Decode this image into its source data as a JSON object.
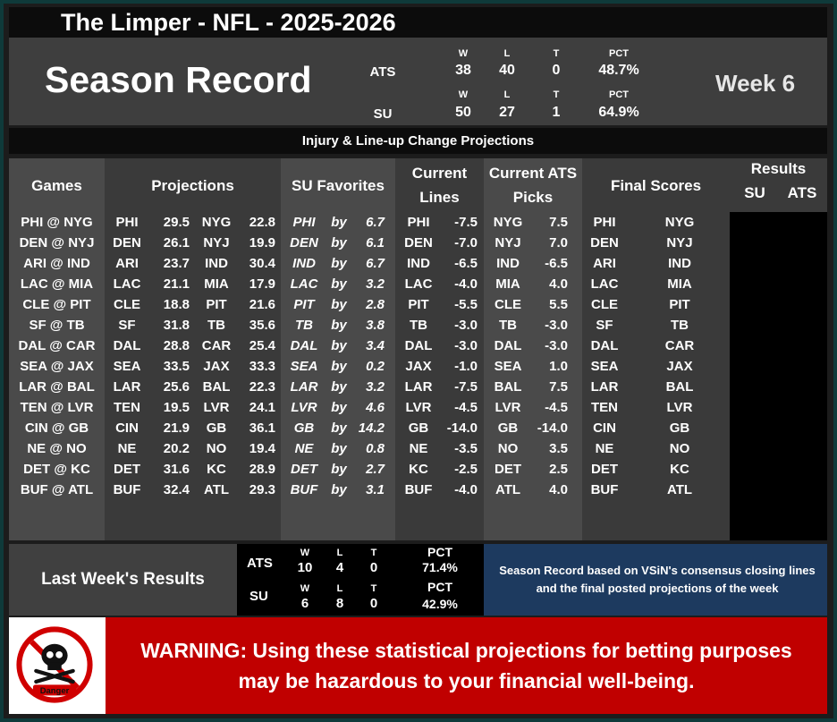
{
  "title": "The Limper - NFL - 2025-2026",
  "season": {
    "heading": "Season Record",
    "week": "Week 6",
    "ats": {
      "label": "ATS",
      "w_hdr": "W",
      "l_hdr": "L",
      "t_hdr": "T",
      "pct_hdr": "PCT",
      "w": "38",
      "l": "40",
      "t": "0",
      "pct": "48.7%"
    },
    "su": {
      "label": "SU",
      "w_hdr": "W",
      "l_hdr": "L",
      "t_hdr": "T",
      "pct_hdr": "PCT",
      "w": "50",
      "l": "27",
      "t": "1",
      "pct": "64.9%"
    }
  },
  "subtitle": "Injury & Line-up Change Projections",
  "headers": {
    "games": "Games",
    "projections": "Projections",
    "su_favorites": "SU Favorites",
    "current_lines_1": "Current",
    "current_lines_2": "Lines",
    "current_ats_1": "Current ATS",
    "current_ats_2": "Picks",
    "final_scores": "Final Scores",
    "results": "Results",
    "results_su": "SU",
    "results_ats": "ATS"
  },
  "rows": [
    {
      "game": "PHI @ NYG",
      "p_away": "PHI",
      "p_away_score": "29.5",
      "p_home": "NYG",
      "p_home_score": "22.8",
      "fav": "PHI",
      "by": "by",
      "margin": "6.7",
      "line_team": "PHI",
      "line": "-7.5",
      "ats_team": "NYG",
      "ats_line": "7.5",
      "f_away": "PHI",
      "f_home": "NYG"
    },
    {
      "game": "DEN @ NYJ",
      "p_away": "DEN",
      "p_away_score": "26.1",
      "p_home": "NYJ",
      "p_home_score": "19.9",
      "fav": "DEN",
      "by": "by",
      "margin": "6.1",
      "line_team": "DEN",
      "line": "-7.0",
      "ats_team": "NYJ",
      "ats_line": "7.0",
      "f_away": "DEN",
      "f_home": "NYJ"
    },
    {
      "game": "ARI @ IND",
      "p_away": "ARI",
      "p_away_score": "23.7",
      "p_home": "IND",
      "p_home_score": "30.4",
      "fav": "IND",
      "by": "by",
      "margin": "6.7",
      "line_team": "IND",
      "line": "-6.5",
      "ats_team": "IND",
      "ats_line": "-6.5",
      "f_away": "ARI",
      "f_home": "IND"
    },
    {
      "game": "LAC @ MIA",
      "p_away": "LAC",
      "p_away_score": "21.1",
      "p_home": "MIA",
      "p_home_score": "17.9",
      "fav": "LAC",
      "by": "by",
      "margin": "3.2",
      "line_team": "LAC",
      "line": "-4.0",
      "ats_team": "MIA",
      "ats_line": "4.0",
      "f_away": "LAC",
      "f_home": "MIA"
    },
    {
      "game": "CLE @ PIT",
      "p_away": "CLE",
      "p_away_score": "18.8",
      "p_home": "PIT",
      "p_home_score": "21.6",
      "fav": "PIT",
      "by": "by",
      "margin": "2.8",
      "line_team": "PIT",
      "line": "-5.5",
      "ats_team": "CLE",
      "ats_line": "5.5",
      "f_away": "CLE",
      "f_home": "PIT"
    },
    {
      "game": "SF @ TB",
      "p_away": "SF",
      "p_away_score": "31.8",
      "p_home": "TB",
      "p_home_score": "35.6",
      "fav": "TB",
      "by": "by",
      "margin": "3.8",
      "line_team": "TB",
      "line": "-3.0",
      "ats_team": "TB",
      "ats_line": "-3.0",
      "f_away": "SF",
      "f_home": "TB"
    },
    {
      "game": "DAL @ CAR",
      "p_away": "DAL",
      "p_away_score": "28.8",
      "p_home": "CAR",
      "p_home_score": "25.4",
      "fav": "DAL",
      "by": "by",
      "margin": "3.4",
      "line_team": "DAL",
      "line": "-3.0",
      "ats_team": "DAL",
      "ats_line": "-3.0",
      "f_away": "DAL",
      "f_home": "CAR"
    },
    {
      "game": "SEA @ JAX",
      "p_away": "SEA",
      "p_away_score": "33.5",
      "p_home": "JAX",
      "p_home_score": "33.3",
      "fav": "SEA",
      "by": "by",
      "margin": "0.2",
      "line_team": "JAX",
      "line": "-1.0",
      "ats_team": "SEA",
      "ats_line": "1.0",
      "f_away": "SEA",
      "f_home": "JAX"
    },
    {
      "game": "LAR @ BAL",
      "p_away": "LAR",
      "p_away_score": "25.6",
      "p_home": "BAL",
      "p_home_score": "22.3",
      "fav": "LAR",
      "by": "by",
      "margin": "3.2",
      "line_team": "LAR",
      "line": "-7.5",
      "ats_team": "BAL",
      "ats_line": "7.5",
      "f_away": "LAR",
      "f_home": "BAL"
    },
    {
      "game": "TEN @ LVR",
      "p_away": "TEN",
      "p_away_score": "19.5",
      "p_home": "LVR",
      "p_home_score": "24.1",
      "fav": "LVR",
      "by": "by",
      "margin": "4.6",
      "line_team": "LVR",
      "line": "-4.5",
      "ats_team": "LVR",
      "ats_line": "-4.5",
      "f_away": "TEN",
      "f_home": "LVR"
    },
    {
      "game": "CIN @ GB",
      "p_away": "CIN",
      "p_away_score": "21.9",
      "p_home": "GB",
      "p_home_score": "36.1",
      "fav": "GB",
      "by": "by",
      "margin": "14.2",
      "line_team": "GB",
      "line": "-14.0",
      "ats_team": "GB",
      "ats_line": "-14.0",
      "f_away": "CIN",
      "f_home": "GB"
    },
    {
      "game": "NE @ NO",
      "p_away": "NE",
      "p_away_score": "20.2",
      "p_home": "NO",
      "p_home_score": "19.4",
      "fav": "NE",
      "by": "by",
      "margin": "0.8",
      "line_team": "NE",
      "line": "-3.5",
      "ats_team": "NO",
      "ats_line": "3.5",
      "f_away": "NE",
      "f_home": "NO"
    },
    {
      "game": "DET @ KC",
      "p_away": "DET",
      "p_away_score": "31.6",
      "p_home": "KC",
      "p_home_score": "28.9",
      "fav": "DET",
      "by": "by",
      "margin": "2.7",
      "line_team": "KC",
      "line": "-2.5",
      "ats_team": "DET",
      "ats_line": "2.5",
      "f_away": "DET",
      "f_home": "KC"
    },
    {
      "game": "BUF @ ATL",
      "p_away": "BUF",
      "p_away_score": "32.4",
      "p_home": "ATL",
      "p_home_score": "29.3",
      "fav": "BUF",
      "by": "by",
      "margin": "3.1",
      "line_team": "BUF",
      "line": "-4.0",
      "ats_team": "ATL",
      "ats_line": "4.0",
      "f_away": "BUF",
      "f_home": "ATL"
    }
  ],
  "last_week": {
    "title": "Last Week's Results",
    "ats": {
      "label": "ATS",
      "w_hdr": "W",
      "l_hdr": "L",
      "t_hdr": "T",
      "pct_hdr": "PCT",
      "w": "10",
      "l": "4",
      "t": "0",
      "pct": "71.4%"
    },
    "su": {
      "label": "SU",
      "w_hdr": "W",
      "l_hdr": "L",
      "t_hdr": "T",
      "pct_hdr": "PCT",
      "w": "6",
      "l": "8",
      "t": "0",
      "pct": "42.9%"
    }
  },
  "note": "Season Record based on VSiN's consensus closing lines and the final posted projections of the week",
  "warning": "WARNING: Using these statistical projections for betting purposes may be hazardous to your financial well-being.",
  "danger_icon": {
    "name": "skull-crossbones-icon",
    "label": "Danger"
  }
}
